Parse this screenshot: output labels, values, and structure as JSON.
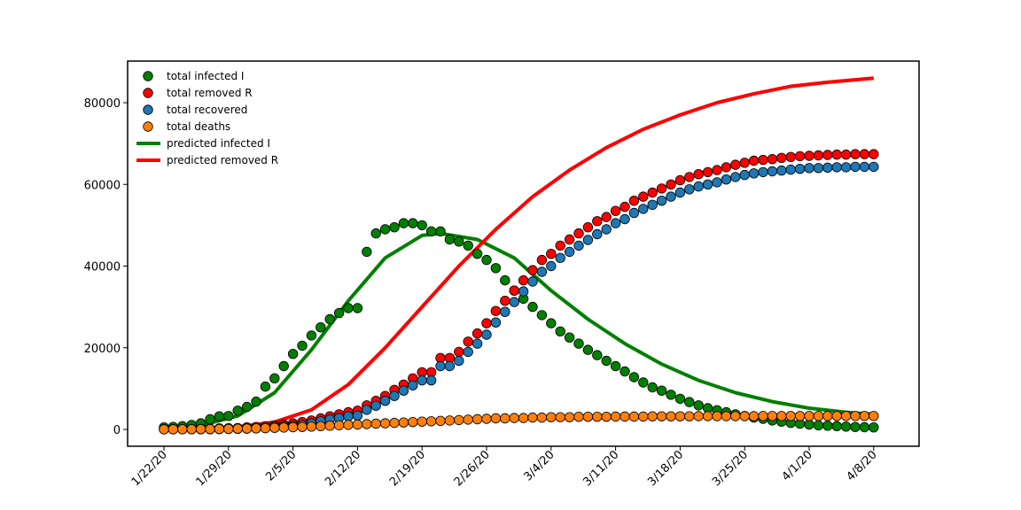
{
  "chart_data": {
    "type": "scatter",
    "title": "",
    "xlabel": "",
    "ylabel": "",
    "x_dates": [
      "1/22/20",
      "1/23/20",
      "1/24/20",
      "1/25/20",
      "1/26/20",
      "1/27/20",
      "1/28/20",
      "1/29/20",
      "1/30/20",
      "1/31/20",
      "2/1/20",
      "2/2/20",
      "2/3/20",
      "2/4/20",
      "2/5/20",
      "2/6/20",
      "2/7/20",
      "2/8/20",
      "2/9/20",
      "2/10/20",
      "2/11/20",
      "2/12/20",
      "2/13/20",
      "2/14/20",
      "2/15/20",
      "2/16/20",
      "2/17/20",
      "2/18/20",
      "2/19/20",
      "2/20/20",
      "2/21/20",
      "2/22/20",
      "2/23/20",
      "2/24/20",
      "2/25/20",
      "2/26/20",
      "2/27/20",
      "2/28/20",
      "2/29/20",
      "3/1/20",
      "3/2/20",
      "3/3/20",
      "3/4/20",
      "3/5/20",
      "3/6/20",
      "3/7/20",
      "3/8/20",
      "3/9/20",
      "3/10/20",
      "3/11/20",
      "3/12/20",
      "3/13/20",
      "3/14/20",
      "3/15/20",
      "3/16/20",
      "3/17/20",
      "3/18/20",
      "3/19/20",
      "3/20/20",
      "3/21/20",
      "3/22/20",
      "3/23/20",
      "3/24/20",
      "3/25/20",
      "3/26/20",
      "3/27/20",
      "3/28/20",
      "3/29/20",
      "3/30/20",
      "3/31/20",
      "4/1/20",
      "4/2/20",
      "4/3/20",
      "4/4/20",
      "4/5/20",
      "4/6/20",
      "4/7/20",
      "4/8/20"
    ],
    "xticks": [
      "1/22/20",
      "1/29/20",
      "2/5/20",
      "2/12/20",
      "2/19/20",
      "2/26/20",
      "3/4/20",
      "3/11/20",
      "3/18/20",
      "3/25/20",
      "4/1/20",
      "4/8/20"
    ],
    "yticks": [
      "0",
      "20000",
      "40000",
      "60000",
      "80000"
    ],
    "ylim": [
      -4000,
      90000
    ],
    "legend_position": "top-left",
    "scatter_series": [
      {
        "name": "total infected I",
        "color": "#008000",
        "values": [
          500,
          600,
          800,
          1100,
          1500,
          2500,
          3200,
          3300,
          4600,
          5500,
          6800,
          10500,
          12500,
          15500,
          18500,
          20500,
          23000,
          25000,
          27000,
          28500,
          29700,
          29700,
          43500,
          48000,
          49000,
          49500,
          50500,
          50500,
          50000,
          48500,
          48500,
          46500,
          46000,
          45000,
          43000,
          41500,
          39500,
          36500,
          34000,
          32000,
          30000,
          28000,
          26000,
          24000,
          22500,
          21000,
          19500,
          18200,
          16800,
          15500,
          14200,
          12800,
          11500,
          10300,
          9500,
          8500,
          7500,
          6700,
          5900,
          5200,
          4700,
          4200,
          3700,
          3300,
          2900,
          2600,
          2200,
          1900,
          1600,
          1400,
          1200,
          1000,
          900,
          800,
          700,
          600,
          550,
          500
        ]
      },
      {
        "name": "total removed R",
        "color": "#ff0000",
        "values": [
          60,
          60,
          90,
          110,
          150,
          200,
          250,
          300,
          350,
          500,
          600,
          750,
          1000,
          1200,
          1500,
          1800,
          2200,
          2700,
          3200,
          3700,
          4200,
          4600,
          5900,
          7000,
          8200,
          9700,
          11000,
          12500,
          14000,
          14000,
          17500,
          17500,
          19000,
          21500,
          23500,
          26000,
          29000,
          31500,
          34000,
          36500,
          39000,
          41500,
          43000,
          45000,
          46500,
          48000,
          49500,
          51000,
          52000,
          53500,
          54500,
          56000,
          57000,
          58000,
          59000,
          60000,
          61000,
          61800,
          62500,
          63000,
          63500,
          64200,
          64800,
          65300,
          65800,
          66000,
          66200,
          66500,
          66700,
          66900,
          67000,
          67100,
          67200,
          67300,
          67300,
          67400,
          67400,
          67400
        ]
      },
      {
        "name": "total recovered",
        "color": "#1f77b4",
        "values": [
          30,
          30,
          40,
          40,
          50,
          50,
          60,
          100,
          130,
          200,
          250,
          350,
          600,
          700,
          900,
          1100,
          1500,
          2000,
          2400,
          2800,
          3200,
          3400,
          4800,
          5800,
          7000,
          8200,
          9500,
          10800,
          12000,
          12000,
          15500,
          15500,
          16800,
          19000,
          21000,
          23200,
          26200,
          28800,
          31200,
          33800,
          36200,
          38600,
          40000,
          42000,
          43500,
          45000,
          46400,
          47800,
          49000,
          50500,
          51500,
          53000,
          54000,
          55000,
          56000,
          57000,
          58000,
          58800,
          59500,
          60000,
          60500,
          61200,
          61800,
          62300,
          62700,
          63000,
          63200,
          63400,
          63600,
          63800,
          64000,
          64000,
          64100,
          64200,
          64200,
          64300,
          64300,
          64300
        ]
      },
      {
        "name": "total deaths",
        "color": "#ff7f0e",
        "values": [
          20,
          25,
          40,
          50,
          60,
          80,
          100,
          130,
          170,
          210,
          250,
          300,
          400,
          450,
          550,
          600,
          700,
          800,
          900,
          1000,
          1100,
          1200,
          1300,
          1400,
          1500,
          1600,
          1700,
          1800,
          1900,
          2000,
          2100,
          2200,
          2300,
          2400,
          2500,
          2600,
          2700,
          2700,
          2800,
          2800,
          2900,
          2900,
          3000,
          3000,
          3000,
          3100,
          3100,
          3100,
          3100,
          3150,
          3150,
          3150,
          3150,
          3200,
          3200,
          3200,
          3200,
          3200,
          3250,
          3250,
          3250,
          3250,
          3250,
          3250,
          3250,
          3300,
          3300,
          3300,
          3300,
          3300,
          3300,
          3300,
          3300,
          3300,
          3300,
          3300,
          3300,
          3300
        ]
      }
    ],
    "line_series": [
      {
        "name": "predicted infected I",
        "color": "#008000",
        "x_index": [
          0,
          4,
          8,
          12,
          16,
          20,
          24,
          28,
          30,
          34,
          38,
          42,
          46,
          50,
          54,
          58,
          62,
          66,
          70,
          74,
          77
        ],
        "values": [
          300,
          1000,
          3300,
          9000,
          19500,
          31500,
          42000,
          47500,
          48000,
          46500,
          42000,
          34000,
          27000,
          21000,
          16000,
          12000,
          9000,
          6800,
          5200,
          4200,
          3700
        ]
      },
      {
        "name": "predicted removed R",
        "color": "#ff0000",
        "x_index": [
          0,
          4,
          8,
          12,
          16,
          20,
          24,
          28,
          32,
          36,
          40,
          44,
          48,
          52,
          56,
          60,
          64,
          68,
          72,
          77
        ],
        "values": [
          100,
          250,
          600,
          1800,
          4800,
          11000,
          20000,
          30000,
          40000,
          49000,
          57000,
          63500,
          69000,
          73500,
          77000,
          80000,
          82200,
          84000,
          85000,
          86000
        ]
      }
    ]
  }
}
